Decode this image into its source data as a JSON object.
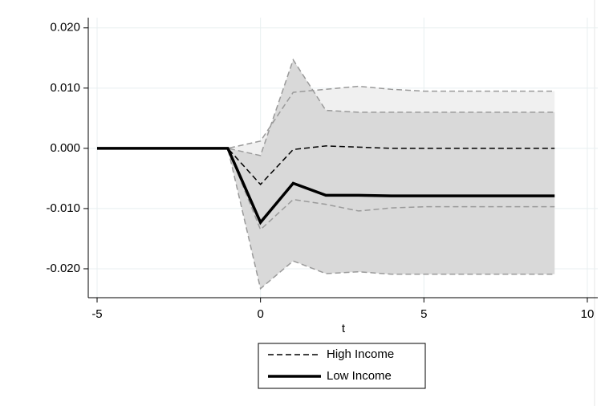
{
  "chart_data": {
    "type": "line",
    "x_label": "t",
    "x": [
      -5,
      -4,
      -3,
      -2,
      -1,
      0,
      1,
      2,
      3,
      4,
      5,
      6,
      7,
      8,
      9
    ],
    "series": [
      {
        "name": "High Income",
        "color": "#000000",
        "dash": true,
        "values": [
          0,
          0,
          0,
          0,
          0,
          -0.006,
          -0.0002,
          0.0004,
          0.0002,
          0,
          0,
          0,
          0,
          0,
          0
        ]
      },
      {
        "name": "Low Income",
        "color": "#000000",
        "dash": false,
        "values": [
          0,
          0,
          0,
          0,
          0,
          -0.0123,
          -0.0058,
          -0.0078,
          -0.0078,
          -0.0079,
          -0.0079,
          -0.0079,
          -0.0079,
          -0.0079,
          -0.0079
        ]
      }
    ],
    "bands": [
      {
        "color": "#f0f0f0",
        "line_color": "#9a9a9a",
        "upper": [
          0,
          0,
          0,
          0,
          0,
          0.0012,
          0.0093,
          0.0098,
          0.0103,
          0.0098,
          0.0095,
          0.0095,
          0.0095,
          0.0095,
          0.0095
        ],
        "lower": [
          0,
          0,
          0,
          0,
          0,
          -0.0135,
          -0.0085,
          -0.0093,
          -0.0104,
          -0.0099,
          -0.0097,
          -0.0097,
          -0.0097,
          -0.0097,
          -0.0097
        ]
      },
      {
        "color": "#d9d9d9",
        "line_color": "#9a9a9a",
        "upper": [
          0,
          0,
          0,
          0,
          0,
          -0.0012,
          0.0147,
          0.0063,
          0.006,
          0.006,
          0.006,
          0.006,
          0.006,
          0.006,
          0.006
        ],
        "lower": [
          0,
          0,
          0,
          0,
          0,
          -0.0233,
          -0.0187,
          -0.0208,
          -0.0205,
          -0.0209,
          -0.0209,
          -0.0209,
          -0.0209,
          -0.0209,
          -0.0209
        ]
      }
    ],
    "xlim": [
      -5.27,
      10.32
    ],
    "xticks": [
      -5,
      0,
      5,
      10
    ],
    "ylim": [
      -0.0248,
      0.0217
    ],
    "yticks": [
      {
        "value": -0.02,
        "label": "-0.020"
      },
      {
        "value": -0.01,
        "label": "-0.010"
      },
      {
        "value": 0,
        "label": "0.000"
      },
      {
        "value": 0.01,
        "label": "0.010"
      },
      {
        "value": 0.02,
        "label": "0.020"
      }
    ],
    "grid": true
  }
}
